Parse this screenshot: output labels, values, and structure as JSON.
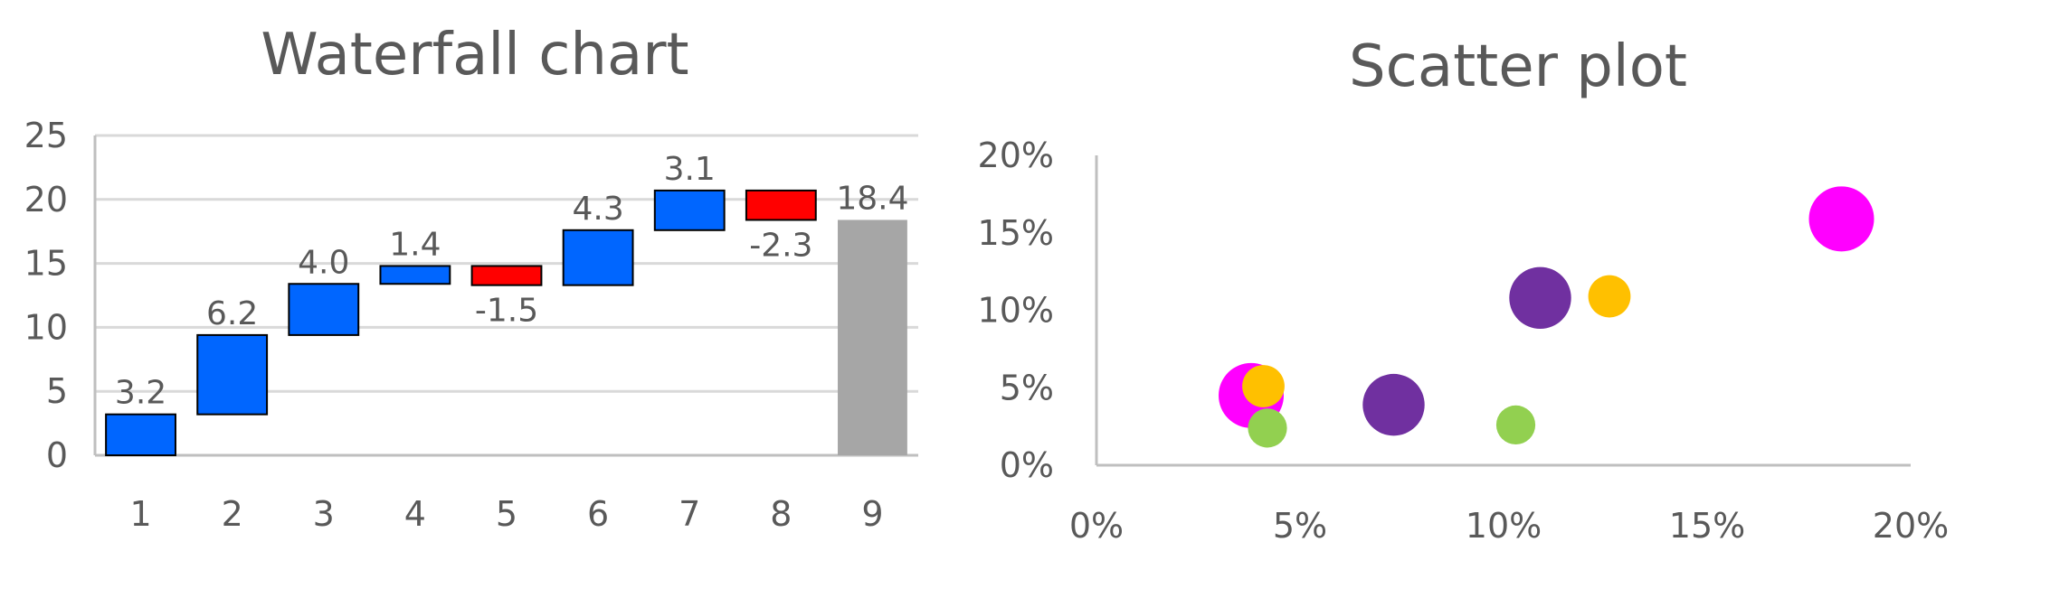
{
  "chart_data": [
    {
      "type": "bar",
      "subtype": "waterfall",
      "title": "Waterfall chart",
      "categories": [
        "1",
        "2",
        "3",
        "4",
        "5",
        "6",
        "7",
        "8",
        "9"
      ],
      "values": [
        3.2,
        6.2,
        4.0,
        1.4,
        -1.5,
        4.3,
        3.1,
        -2.3,
        18.4
      ],
      "labels": [
        "3.2",
        "6.2",
        "4.0",
        "1.4",
        "-1.5",
        "4.3",
        "3.1",
        "-2.3",
        "18.4"
      ],
      "total_index": 8,
      "ylim": [
        0,
        25
      ],
      "yticks": [
        "0",
        "5",
        "10",
        "15",
        "20",
        "25"
      ],
      "grid": true,
      "colors": {
        "increase": "#0066ff",
        "decrease": "#ff0000",
        "total": "#a6a6a6"
      }
    },
    {
      "type": "scatter",
      "subtype": "bubble",
      "title": "Scatter plot",
      "xlim": [
        0,
        20
      ],
      "ylim": [
        0,
        20
      ],
      "xticks": [
        "0%",
        "5%",
        "10%",
        "15%",
        "20%"
      ],
      "yticks": [
        "0%",
        "5%",
        "10%",
        "15%",
        "20%"
      ],
      "grid": false,
      "points": [
        {
          "x": 3.8,
          "y": 4.5,
          "size": 1.0,
          "color": "#ff00ff"
        },
        {
          "x": 18.3,
          "y": 15.9,
          "size": 1.0,
          "color": "#ff00ff"
        },
        {
          "x": 4.1,
          "y": 5.1,
          "size": 0.65,
          "color": "#ffc000"
        },
        {
          "x": 12.6,
          "y": 10.9,
          "size": 0.65,
          "color": "#ffc000"
        },
        {
          "x": 7.3,
          "y": 3.9,
          "size": 0.95,
          "color": "#7030a0"
        },
        {
          "x": 10.9,
          "y": 10.8,
          "size": 0.95,
          "color": "#7030a0"
        },
        {
          "x": 4.2,
          "y": 2.4,
          "size": 0.6,
          "color": "#92d050"
        },
        {
          "x": 10.3,
          "y": 2.6,
          "size": 0.6,
          "color": "#92d050"
        }
      ]
    }
  ]
}
